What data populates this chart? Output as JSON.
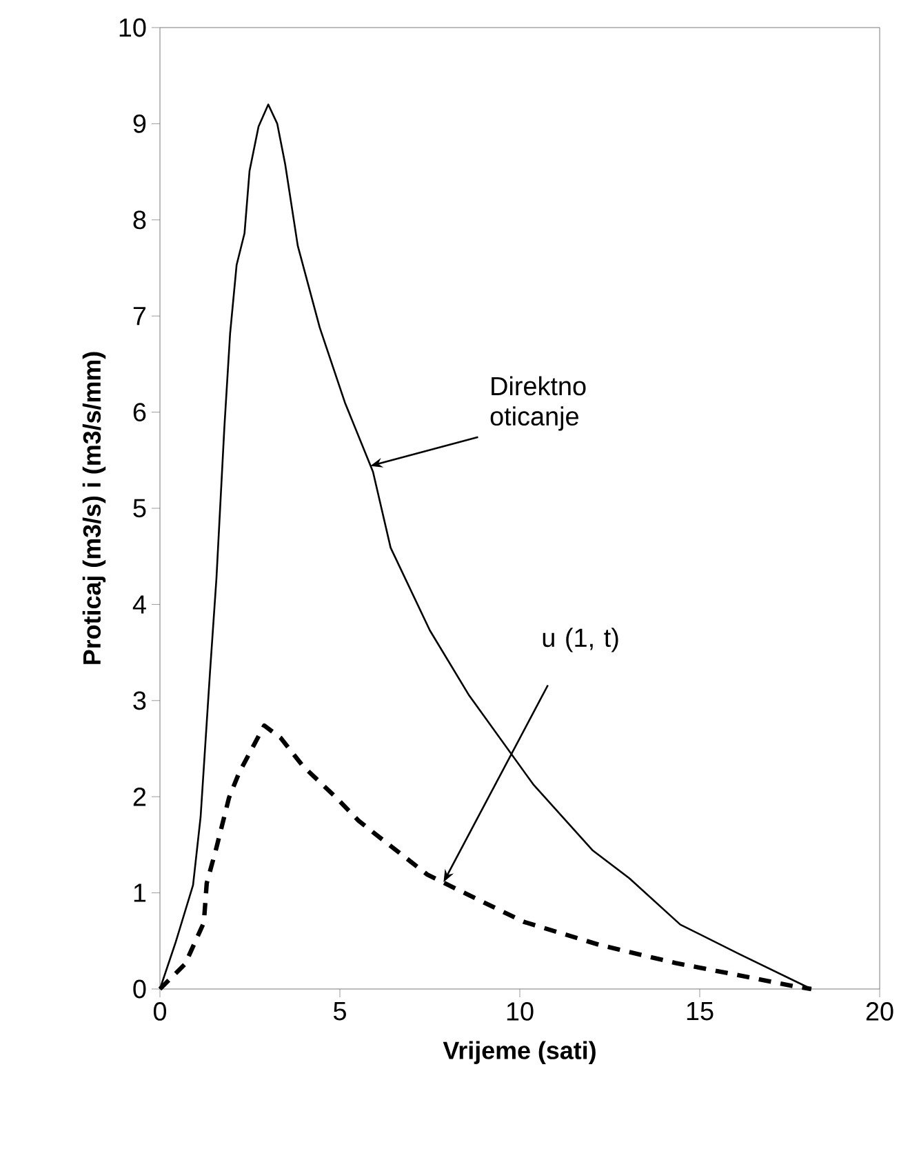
{
  "chart_data": {
    "type": "line",
    "xlabel": "Vrijeme (sati)",
    "ylabel": "Proticaj (m3/s) i (m3/s/mm)",
    "xlim": [
      0,
      20
    ],
    "ylim": [
      0,
      10
    ],
    "xticks": [
      0,
      5,
      10,
      15,
      20
    ],
    "yticks": [
      0,
      1,
      2,
      3,
      4,
      5,
      6,
      7,
      8,
      9,
      10
    ],
    "marker": "none",
    "series": [
      {
        "color": "#000000",
        "line_style": "solid",
        "x": [
          0,
          0.44,
          0.92,
          1.13,
          1.39,
          1.57,
          1.79,
          1.95,
          2.13,
          2.35,
          2.49,
          2.74,
          3.01,
          3.26,
          3.48,
          3.83,
          4.44,
          5.14,
          5.92,
          6.41,
          7.5,
          8.58,
          10.37,
          12.03,
          13.05,
          14.46,
          16.12,
          18.1
        ],
        "values": [
          0,
          0.49,
          1.08,
          1.79,
          3.29,
          4.27,
          5.84,
          6.82,
          7.53,
          7.86,
          8.51,
          8.97,
          9.2,
          9.0,
          8.58,
          7.73,
          6.88,
          6.1,
          5.38,
          4.59,
          3.73,
          3.06,
          2.13,
          1.44,
          1.15,
          0.67,
          0.36,
          0
        ]
      },
      {
        "color": "#000000",
        "line_style": "dashed",
        "x": [
          0,
          0.7,
          1.22,
          1.3,
          1.57,
          1.92,
          2.2,
          2.9,
          3.36,
          3.97,
          4.9,
          5.52,
          5.82,
          7.43,
          8.46,
          10.1,
          12.2,
          14.33,
          16.4,
          17.6,
          18.1
        ],
        "values": [
          0,
          0.26,
          0.69,
          1.1,
          1.47,
          1.99,
          2.25,
          2.74,
          2.61,
          2.32,
          1.99,
          1.75,
          1.66,
          1.19,
          1.0,
          0.7,
          0.46,
          0.27,
          0.12,
          0.03,
          0
        ]
      }
    ],
    "annotations": [
      {
        "text": "Direktno oticanje",
        "x": 5.84,
        "y": 5.44
      },
      {
        "text": "u (1, t)",
        "x": 7.88,
        "y": 1.11
      }
    ]
  }
}
